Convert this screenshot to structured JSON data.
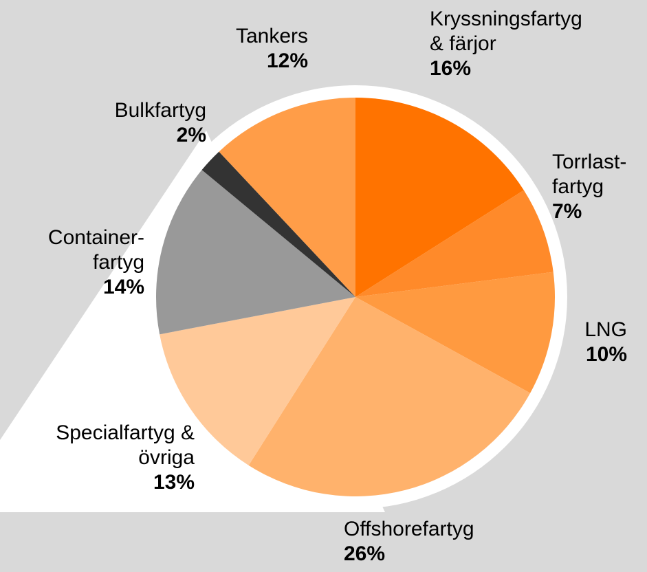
{
  "chart_data": {
    "type": "pie",
    "categories": [
      "Kryssningsfartyg\n& färjor",
      "Torrlast-\nfartyg",
      "LNG",
      "Offshorefartyg",
      "Specialfartyg &\növriga",
      "Container-\nfartyg",
      "Bulkfartyg",
      "Tankers"
    ],
    "values": [
      16,
      7,
      10,
      26,
      13,
      14,
      2,
      12
    ],
    "value_labels": [
      "16%",
      "7%",
      "10%",
      "26%",
      "13%",
      "14%",
      "2%",
      "12%"
    ],
    "colors": [
      "#ff7300",
      "#ff8a2a",
      "#ff9a40",
      "#ffb26c",
      "#ffc999",
      "#999999",
      "#333333",
      "#ff9d48"
    ]
  }
}
